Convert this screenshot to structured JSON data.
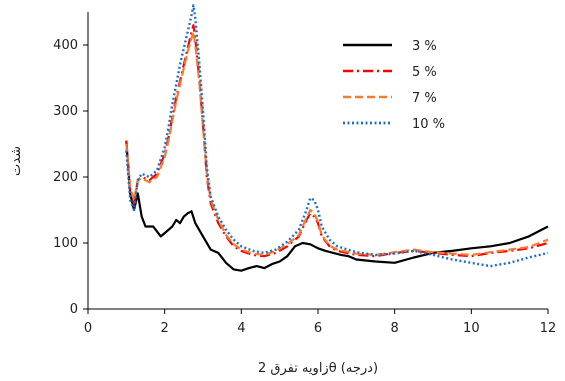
{
  "chart_data": {
    "type": "line",
    "xlabel": "زاویه تفرق 2θ (درجه)",
    "ylabel": "شدت",
    "xlim": [
      0,
      12
    ],
    "ylim": [
      0,
      450
    ],
    "xticks": [
      0,
      2,
      4,
      6,
      8,
      10,
      12
    ],
    "yticks": [
      0,
      100,
      200,
      300,
      400
    ],
    "xtick_labels": [
      "0",
      "2",
      "4",
      "6",
      "8",
      "10",
      "12"
    ],
    "ytick_labels": [
      "0",
      "100",
      "200",
      "300",
      "400"
    ],
    "grid": false,
    "legend_position": "top-right",
    "series": [
      {
        "name": "3 %",
        "color": "#000000",
        "style": "solid",
        "x": [
          1.0,
          1.1,
          1.2,
          1.3,
          1.4,
          1.5,
          1.7,
          1.9,
          2.0,
          2.1,
          2.2,
          2.3,
          2.4,
          2.5,
          2.6,
          2.7,
          2.8,
          2.9,
          3.0,
          3.2,
          3.4,
          3.6,
          3.8,
          4.0,
          4.2,
          4.4,
          4.6,
          4.8,
          5.0,
          5.2,
          5.4,
          5.6,
          5.8,
          6.0,
          6.2,
          6.4,
          6.6,
          6.8,
          7.0,
          7.5,
          8.0,
          8.5,
          9.0,
          9.5,
          10.0,
          10.5,
          11.0,
          11.5,
          12.0
        ],
        "y": [
          255,
          175,
          150,
          175,
          140,
          125,
          125,
          110,
          115,
          120,
          125,
          135,
          130,
          140,
          145,
          148,
          130,
          120,
          110,
          90,
          85,
          70,
          60,
          58,
          62,
          65,
          62,
          68,
          72,
          80,
          95,
          100,
          98,
          92,
          88,
          85,
          82,
          80,
          75,
          72,
          70,
          78,
          85,
          88,
          92,
          95,
          100,
          110,
          125
        ]
      },
      {
        "name": "5 %",
        "color": "#ff0000",
        "style": "dashdot",
        "x": [
          1.0,
          1.1,
          1.2,
          1.3,
          1.4,
          1.6,
          1.8,
          2.0,
          2.1,
          2.2,
          2.3,
          2.4,
          2.5,
          2.6,
          2.7,
          2.75,
          2.8,
          2.9,
          3.0,
          3.1,
          3.2,
          3.4,
          3.6,
          3.8,
          4.0,
          4.3,
          4.6,
          4.9,
          5.2,
          5.5,
          5.7,
          5.8,
          5.9,
          6.0,
          6.1,
          6.3,
          6.5,
          7.0,
          7.5,
          8.0,
          8.5,
          9.0,
          9.5,
          10.0,
          10.5,
          11.0,
          11.5,
          12.0
        ],
        "y": [
          255,
          180,
          160,
          195,
          200,
          195,
          205,
          235,
          260,
          290,
          320,
          345,
          370,
          395,
          420,
          430,
          410,
          350,
          280,
          200,
          160,
          130,
          110,
          95,
          88,
          82,
          80,
          85,
          95,
          110,
          135,
          145,
          140,
          130,
          110,
          95,
          88,
          82,
          80,
          85,
          88,
          85,
          82,
          80,
          85,
          88,
          92,
          100
        ]
      },
      {
        "name": "7 %",
        "color": "#f47c30",
        "style": "dashed",
        "x": [
          1.0,
          1.1,
          1.2,
          1.3,
          1.4,
          1.6,
          1.8,
          2.0,
          2.1,
          2.2,
          2.3,
          2.4,
          2.5,
          2.6,
          2.7,
          2.75,
          2.8,
          2.9,
          3.0,
          3.1,
          3.2,
          3.4,
          3.6,
          3.8,
          4.0,
          4.3,
          4.6,
          4.9,
          5.2,
          5.5,
          5.7,
          5.8,
          5.9,
          6.0,
          6.1,
          6.3,
          6.5,
          7.0,
          7.5,
          8.0,
          8.5,
          9.0,
          9.5,
          10.0,
          10.5,
          11.0,
          11.5,
          12.0
        ],
        "y": [
          250,
          185,
          165,
          195,
          198,
          192,
          200,
          230,
          255,
          285,
          315,
          340,
          365,
          390,
          410,
          420,
          400,
          345,
          275,
          205,
          165,
          135,
          112,
          98,
          90,
          84,
          82,
          88,
          98,
          112,
          138,
          150,
          145,
          132,
          112,
          96,
          90,
          84,
          82,
          86,
          90,
          86,
          84,
          82,
          86,
          90,
          94,
          105
        ]
      },
      {
        "name": "10 %",
        "color": "#1f6fc8",
        "style": "dotted",
        "x": [
          1.0,
          1.1,
          1.2,
          1.3,
          1.4,
          1.6,
          1.8,
          2.0,
          2.1,
          2.2,
          2.3,
          2.4,
          2.5,
          2.6,
          2.7,
          2.75,
          2.8,
          2.9,
          3.0,
          3.1,
          3.2,
          3.4,
          3.6,
          3.8,
          4.0,
          4.3,
          4.6,
          4.9,
          5.2,
          5.5,
          5.7,
          5.8,
          5.9,
          6.0,
          6.1,
          6.3,
          6.5,
          7.0,
          7.5,
          8.0,
          8.5,
          9.0,
          9.5,
          10.0,
          10.5,
          11.0,
          11.5,
          12.0
        ],
        "y": [
          240,
          165,
          150,
          195,
          205,
          200,
          210,
          245,
          275,
          310,
          340,
          370,
          395,
          420,
          445,
          460,
          440,
          375,
          300,
          215,
          170,
          140,
          120,
          105,
          95,
          88,
          85,
          90,
          102,
          120,
          150,
          168,
          165,
          150,
          125,
          105,
          95,
          86,
          82,
          84,
          88,
          82,
          75,
          70,
          65,
          70,
          78,
          85
        ]
      }
    ]
  }
}
